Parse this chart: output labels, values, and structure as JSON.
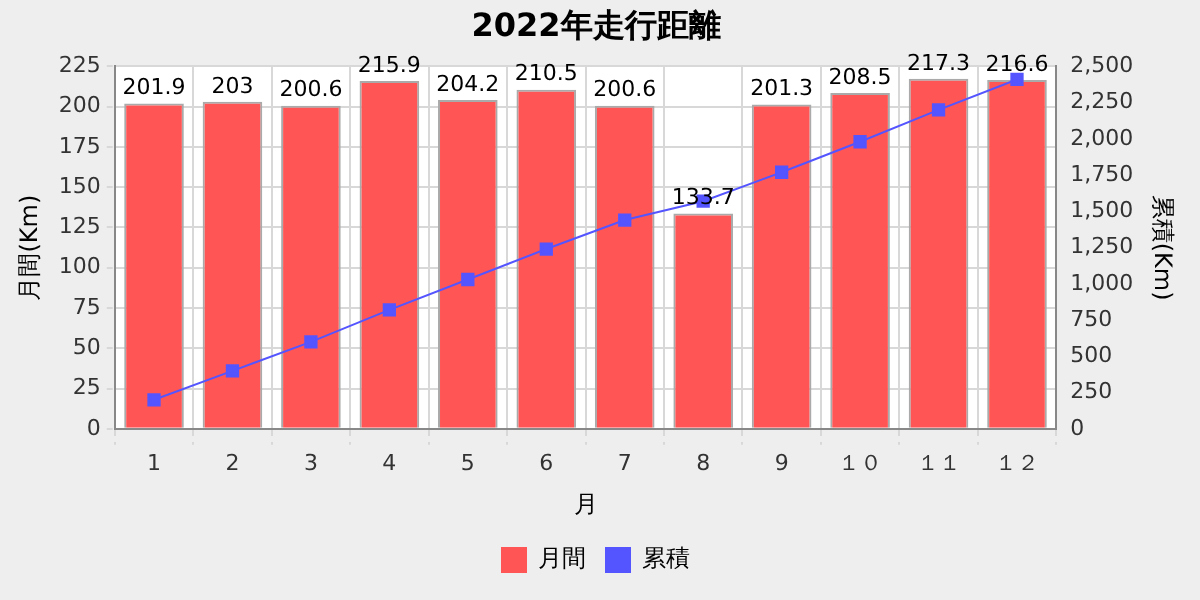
{
  "chart_data": {
    "type": "bar",
    "title": "2022年走行距離",
    "xlabel": "月",
    "ylabel": "月間(Km)",
    "y2label": "累積(Km)",
    "categories": [
      "1",
      "2",
      "3",
      "4",
      "5",
      "6",
      "7",
      "8",
      "9",
      "１０",
      "１１",
      "１２"
    ],
    "series": [
      {
        "name": "月間",
        "color": "#ff5555",
        "values": [
          201.9,
          203,
          200.6,
          215.9,
          204.2,
          210.5,
          200.6,
          133.7,
          201.3,
          208.5,
          217.3,
          216.6
        ],
        "value_labels": [
          "201.9",
          "203",
          "200.6",
          "215.9",
          "204.2",
          "210.5",
          "200.6",
          "133.7",
          "201.3",
          "208.5",
          "217.3",
          "216.6"
        ]
      },
      {
        "name": "累積",
        "type": "line",
        "axis": "y2",
        "color": "#5555ff",
        "marker": "square",
        "values": [
          200,
          400,
          600,
          820,
          1030,
          1240,
          1440,
          1570,
          1770,
          1980,
          2200,
          2410
        ]
      }
    ],
    "ylim": [
      0,
      225
    ],
    "yticks": [
      0,
      25,
      50,
      75,
      100,
      125,
      150,
      175,
      200,
      225
    ],
    "y2lim": [
      0,
      2500
    ],
    "y2ticks": [
      {
        "value": 0,
        "label": "0"
      },
      {
        "value": 250,
        "label": "250"
      },
      {
        "value": 500,
        "label": "500"
      },
      {
        "value": 750,
        "label": "750"
      },
      {
        "value": 1000,
        "label": "1,000"
      },
      {
        "value": 1250,
        "label": "1,250"
      },
      {
        "value": 1500,
        "label": "1,500"
      },
      {
        "value": 1750,
        "label": "1,750"
      },
      {
        "value": 2000,
        "label": "2,000"
      },
      {
        "value": 2250,
        "label": "2,250"
      },
      {
        "value": 2500,
        "label": "2,500"
      }
    ],
    "grid": true,
    "legend": "bottom"
  }
}
